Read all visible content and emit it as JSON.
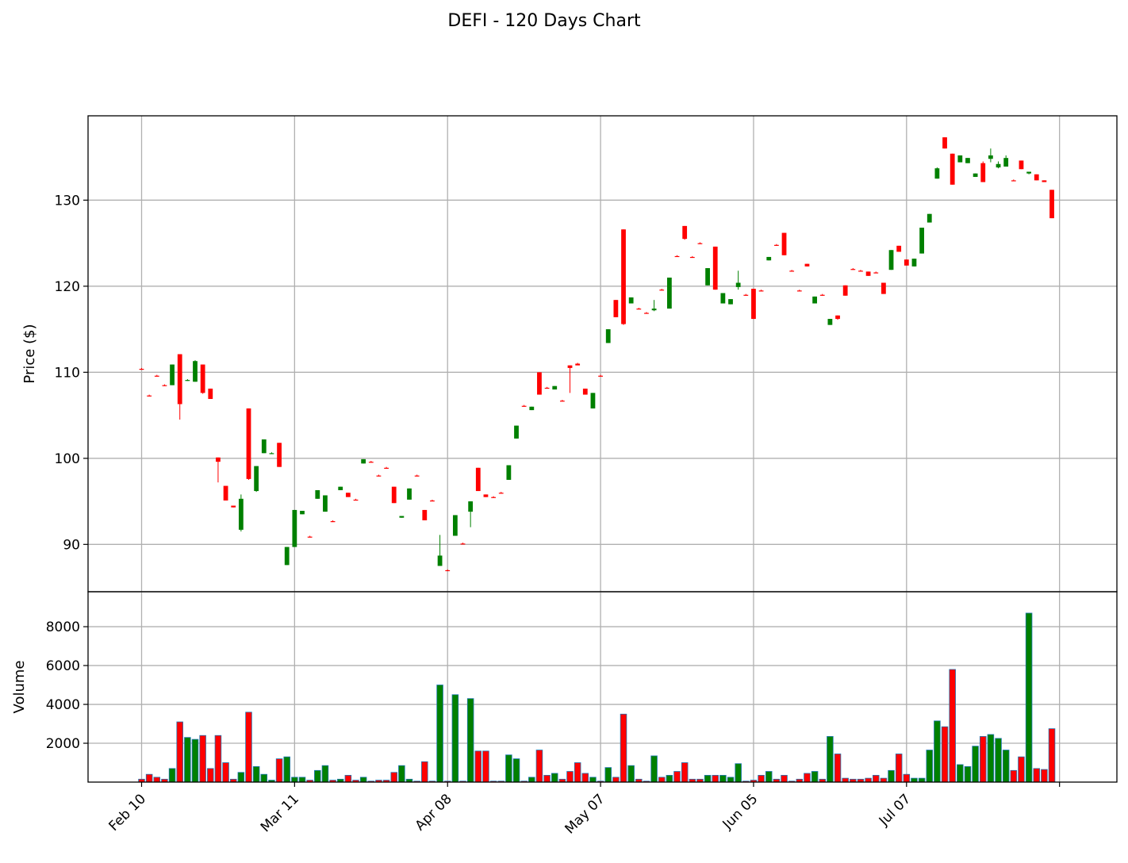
{
  "chart_data": {
    "type": "candlestick",
    "title": "DEFI - 120 Days Chart",
    "price_panel": {
      "ylabel": "Price ($)",
      "yticks": [
        90,
        100,
        110,
        120,
        130
      ],
      "ylim": [
        84.5,
        139.8
      ],
      "grid": true
    },
    "volume_panel": {
      "ylabel": "Volume",
      "yticks": [
        2000,
        4000,
        6000,
        8000
      ],
      "ylim": [
        0,
        9800
      ],
      "grid": true
    },
    "xaxis": {
      "start_label": "Feb 10",
      "tick_labels": [
        "Feb 10",
        "Mar 11",
        "Apr 08",
        "May 07",
        "Jun 05",
        "Jul 07"
      ],
      "tick_index": [
        0,
        20,
        40,
        60,
        80,
        100
      ],
      "trailing_tick_index": 120,
      "xlim": [
        -7,
        127.5
      ]
    },
    "colors": {
      "up": "#008000",
      "down": "#ff0000",
      "volume_edge": "#1f77b4",
      "grid": "#b0b0b0"
    },
    "candles": [
      [
        0,
        110.4,
        110.5,
        110.3,
        110.3,
        150
      ],
      [
        1,
        107.3,
        107.4,
        107.2,
        107.2,
        400
      ],
      [
        2,
        109.6,
        109.7,
        109.5,
        109.5,
        250
      ],
      [
        3,
        108.5,
        108.6,
        108.4,
        108.4,
        150
      ],
      [
        4,
        108.5,
        110.9,
        108.5,
        110.9,
        700
      ],
      [
        5,
        112.1,
        112.1,
        104.5,
        106.3,
        3100
      ],
      [
        6,
        109.1,
        109.2,
        109.0,
        109.1,
        2300
      ],
      [
        7,
        108.9,
        111.4,
        108.9,
        111.3,
        2200
      ],
      [
        8,
        110.9,
        110.9,
        107.5,
        107.6,
        2400
      ],
      [
        9,
        108.1,
        108.1,
        106.9,
        106.9,
        700
      ],
      [
        10,
        100.1,
        100.1,
        97.2,
        99.6,
        2400
      ],
      [
        11,
        96.8,
        96.8,
        95.1,
        95.1,
        1000
      ],
      [
        12,
        94.5,
        94.5,
        94.3,
        94.3,
        150
      ],
      [
        13,
        91.7,
        95.8,
        91.5,
        95.3,
        500
      ],
      [
        14,
        105.8,
        105.8,
        97.5,
        97.6,
        3600
      ],
      [
        15,
        96.2,
        99.1,
        96.1,
        99.1,
        800
      ],
      [
        16,
        100.6,
        102.2,
        100.6,
        102.2,
        400
      ],
      [
        17,
        100.6,
        100.7,
        100.5,
        100.6,
        100
      ],
      [
        18,
        101.8,
        101.8,
        99.0,
        99.0,
        1200
      ],
      [
        19,
        87.6,
        89.7,
        87.6,
        89.7,
        1300
      ],
      [
        20,
        89.7,
        94.0,
        89.7,
        94.0,
        250
      ],
      [
        21,
        93.5,
        93.9,
        93.5,
        93.9,
        250
      ],
      [
        22,
        90.9,
        91.0,
        90.8,
        90.8,
        100
      ],
      [
        23,
        95.3,
        96.3,
        95.3,
        96.3,
        600
      ],
      [
        24,
        93.8,
        95.7,
        93.8,
        95.7,
        850
      ],
      [
        25,
        92.7,
        92.8,
        92.6,
        92.6,
        100
      ],
      [
        26,
        96.3,
        96.7,
        96.3,
        96.7,
        150
      ],
      [
        27,
        96.0,
        96.0,
        95.5,
        95.5,
        350
      ],
      [
        28,
        95.2,
        95.3,
        95.1,
        95.1,
        100
      ],
      [
        29,
        99.4,
        99.9,
        99.4,
        99.9,
        250
      ],
      [
        30,
        99.6,
        99.7,
        99.5,
        99.5,
        50
      ],
      [
        31,
        98.0,
        98.1,
        97.9,
        97.9,
        100
      ],
      [
        32,
        98.9,
        99.0,
        98.8,
        98.8,
        100
      ],
      [
        33,
        96.7,
        96.7,
        94.8,
        94.8,
        500
      ],
      [
        34,
        93.1,
        93.3,
        93.1,
        93.3,
        850
      ],
      [
        35,
        95.2,
        96.5,
        95.2,
        96.5,
        150
      ],
      [
        36,
        98.0,
        98.1,
        97.9,
        97.9,
        50
      ],
      [
        37,
        94.0,
        94.0,
        92.8,
        92.8,
        1050
      ],
      [
        38,
        95.1,
        95.2,
        95.0,
        95.0,
        50
      ],
      [
        39,
        87.5,
        91.1,
        87.5,
        88.7,
        5000
      ],
      [
        40,
        87.0,
        87.1,
        86.9,
        86.9,
        50
      ],
      [
        41,
        91.0,
        93.4,
        91.0,
        93.4,
        4500
      ],
      [
        42,
        90.1,
        90.2,
        90.0,
        90.0,
        50
      ],
      [
        43,
        93.8,
        95.0,
        92.0,
        95.0,
        4300
      ],
      [
        44,
        98.9,
        98.9,
        96.2,
        96.2,
        1600
      ],
      [
        45,
        95.8,
        95.8,
        95.5,
        95.5,
        1600
      ],
      [
        46,
        95.5,
        95.6,
        95.4,
        95.4,
        50
      ],
      [
        47,
        96.0,
        96.1,
        95.9,
        95.9,
        50
      ],
      [
        48,
        97.5,
        99.2,
        97.5,
        99.2,
        1400
      ],
      [
        49,
        102.3,
        103.8,
        102.3,
        103.8,
        1200
      ],
      [
        50,
        106.1,
        106.2,
        106.0,
        106.0,
        50
      ],
      [
        51,
        105.6,
        106.0,
        105.6,
        106.0,
        250
      ],
      [
        52,
        110.0,
        110.0,
        107.4,
        107.4,
        1650
      ],
      [
        53,
        108.2,
        108.3,
        108.1,
        108.1,
        350
      ],
      [
        54,
        108.0,
        108.4,
        108.0,
        108.4,
        450
      ],
      [
        55,
        106.7,
        106.8,
        106.6,
        106.6,
        150
      ],
      [
        56,
        110.8,
        110.8,
        107.6,
        110.5,
        550
      ],
      [
        57,
        111.0,
        111.1,
        110.9,
        110.8,
        1000
      ],
      [
        58,
        108.1,
        108.1,
        107.4,
        107.4,
        450
      ],
      [
        59,
        105.8,
        107.6,
        105.8,
        107.6,
        250
      ],
      [
        60,
        109.6,
        109.7,
        109.5,
        109.5,
        50
      ],
      [
        61,
        113.4,
        115.0,
        113.4,
        115.0,
        750
      ],
      [
        62,
        118.4,
        118.4,
        116.4,
        116.4,
        250
      ],
      [
        63,
        126.6,
        126.6,
        115.5,
        115.6,
        3500
      ],
      [
        64,
        118.0,
        118.7,
        118.0,
        118.7,
        850
      ],
      [
        65,
        117.4,
        117.5,
        117.3,
        117.3,
        150
      ],
      [
        66,
        116.9,
        117.0,
        116.8,
        116.8,
        50
      ],
      [
        67,
        117.2,
        118.4,
        117.1,
        117.4,
        1350
      ],
      [
        68,
        119.6,
        119.7,
        119.5,
        119.5,
        250
      ],
      [
        69,
        117.4,
        121.0,
        117.4,
        121.0,
        350
      ],
      [
        70,
        123.5,
        123.6,
        123.4,
        123.4,
        550
      ],
      [
        71,
        127.0,
        127.0,
        125.4,
        125.5,
        1000
      ],
      [
        72,
        123.4,
        123.5,
        123.3,
        123.3,
        150
      ],
      [
        73,
        125.0,
        125.1,
        124.9,
        124.9,
        150
      ],
      [
        74,
        120.1,
        122.1,
        120.1,
        122.1,
        350
      ],
      [
        75,
        124.6,
        124.6,
        119.6,
        119.6,
        350
      ],
      [
        76,
        118.0,
        119.2,
        118.0,
        119.2,
        350
      ],
      [
        77,
        117.9,
        118.5,
        117.9,
        118.5,
        250
      ],
      [
        78,
        119.9,
        121.8,
        119.6,
        120.4,
        950
      ],
      [
        79,
        119.0,
        119.1,
        118.9,
        118.9,
        50
      ],
      [
        80,
        119.7,
        119.7,
        116.2,
        116.2,
        100
      ],
      [
        81,
        119.5,
        119.6,
        119.4,
        119.4,
        350
      ],
      [
        82,
        123.0,
        123.4,
        123.0,
        123.4,
        550
      ],
      [
        83,
        124.8,
        124.9,
        124.7,
        124.7,
        150
      ],
      [
        84,
        126.2,
        126.2,
        123.6,
        123.6,
        350
      ],
      [
        85,
        121.8,
        121.9,
        121.7,
        121.7,
        50
      ],
      [
        86,
        119.5,
        119.6,
        119.4,
        119.4,
        150
      ],
      [
        87,
        122.6,
        122.6,
        122.3,
        122.3,
        450
      ],
      [
        88,
        118.0,
        118.8,
        118.0,
        118.8,
        550
      ],
      [
        89,
        119.0,
        119.1,
        118.9,
        118.9,
        150
      ],
      [
        90,
        115.5,
        116.2,
        115.5,
        116.2,
        2350
      ],
      [
        91,
        116.6,
        116.6,
        116.1,
        116.2,
        1450
      ],
      [
        92,
        120.1,
        120.1,
        118.9,
        118.9,
        200
      ],
      [
        93,
        122.0,
        122.1,
        121.9,
        121.9,
        150
      ],
      [
        94,
        121.8,
        121.9,
        121.7,
        121.7,
        150
      ],
      [
        95,
        121.7,
        121.7,
        121.2,
        121.2,
        200
      ],
      [
        96,
        121.6,
        121.7,
        121.5,
        121.5,
        350
      ],
      [
        97,
        120.4,
        120.4,
        119.1,
        119.1,
        200
      ],
      [
        98,
        121.9,
        124.2,
        121.9,
        124.2,
        600
      ],
      [
        99,
        124.7,
        124.7,
        124.0,
        124.0,
        1450
      ],
      [
        100,
        123.1,
        123.1,
        122.4,
        122.4,
        400
      ],
      [
        101,
        122.3,
        123.2,
        122.3,
        123.2,
        200
      ],
      [
        102,
        123.8,
        126.8,
        123.8,
        126.8,
        200
      ],
      [
        103,
        127.4,
        128.4,
        127.4,
        128.4,
        1650
      ],
      [
        104,
        132.5,
        133.8,
        132.5,
        133.7,
        3150
      ],
      [
        105,
        137.3,
        137.3,
        136.0,
        136.0,
        2850
      ],
      [
        106,
        135.4,
        135.4,
        131.8,
        131.8,
        5800
      ],
      [
        107,
        134.4,
        135.2,
        134.4,
        135.2,
        900
      ],
      [
        108,
        134.3,
        134.9,
        134.3,
        134.9,
        800
      ],
      [
        109,
        132.7,
        133.1,
        132.7,
        133.1,
        1850
      ],
      [
        110,
        134.3,
        134.5,
        132.1,
        132.1,
        2350
      ],
      [
        111,
        134.8,
        136.0,
        134.4,
        135.2,
        2450
      ],
      [
        112,
        133.8,
        134.5,
        133.7,
        134.2,
        2250
      ],
      [
        113,
        133.9,
        135.2,
        133.9,
        134.9,
        1650
      ],
      [
        114,
        132.3,
        132.4,
        132.2,
        132.2,
        600
      ],
      [
        115,
        134.6,
        134.6,
        133.6,
        133.6,
        1300
      ],
      [
        116,
        133.1,
        133.3,
        133.0,
        133.3,
        8700
      ],
      [
        117,
        133.0,
        133.0,
        132.3,
        132.3,
        700
      ],
      [
        118,
        132.3,
        132.3,
        132.1,
        132.1,
        650
      ],
      [
        119,
        131.2,
        131.2,
        127.9,
        127.9,
        2750
      ]
    ]
  }
}
